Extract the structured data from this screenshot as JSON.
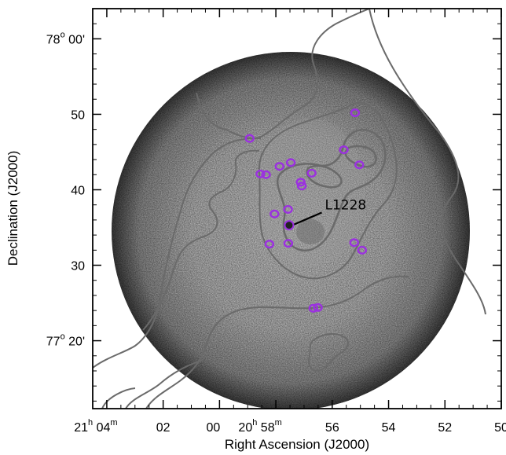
{
  "chart_data": {
    "type": "scatter",
    "title": "",
    "xlabel": "Right Ascension (J2000)",
    "ylabel": "Declination (J2000)",
    "x_unit": "minutes of RA (20h offset)",
    "y_unit": "arcmin above 77°",
    "xlim": [
      64.5,
      50
    ],
    "ylim": [
      11,
      64
    ],
    "grid": false,
    "background": "greyscale sky image (circular field)",
    "x_ticks": [
      {
        "value": 64,
        "h": "21",
        "m": "04",
        "rest": ""
      },
      {
        "value": 62,
        "h": "",
        "m": "",
        "rest": "02"
      },
      {
        "value": 60,
        "h": "",
        "m": "",
        "rest": "00"
      },
      {
        "value": 58,
        "h": "20",
        "m": "58",
        "rest": ""
      },
      {
        "value": 56,
        "h": "",
        "m": "",
        "rest": "56"
      },
      {
        "value": 54,
        "h": "",
        "m": "",
        "rest": "54"
      },
      {
        "value": 52,
        "h": "",
        "m": "",
        "rest": "52"
      },
      {
        "value": 50,
        "h": "",
        "m": "",
        "rest": "50"
      }
    ],
    "y_ticks": [
      {
        "value": 60,
        "deg": "78",
        "min": "00'",
        "plain": ""
      },
      {
        "value": 50,
        "deg": "",
        "min": "",
        "plain": "50"
      },
      {
        "value": 40,
        "deg": "",
        "min": "",
        "plain": "40"
      },
      {
        "value": 30,
        "deg": "",
        "min": "",
        "plain": "30"
      },
      {
        "value": 20,
        "deg": "77",
        "min": "20'",
        "plain": ""
      }
    ],
    "ellipses": [
      {
        "x": 55.19,
        "y": 50.2
      },
      {
        "x": 58.93,
        "y": 46.8
      },
      {
        "x": 55.59,
        "y": 45.3
      },
      {
        "x": 55.04,
        "y": 43.3
      },
      {
        "x": 58.55,
        "y": 42.1
      },
      {
        "x": 58.35,
        "y": 42.0
      },
      {
        "x": 57.87,
        "y": 43.1
      },
      {
        "x": 57.47,
        "y": 43.6
      },
      {
        "x": 56.73,
        "y": 42.2
      },
      {
        "x": 57.12,
        "y": 41.0
      },
      {
        "x": 57.08,
        "y": 40.5
      },
      {
        "x": 58.05,
        "y": 36.8
      },
      {
        "x": 57.57,
        "y": 37.4
      },
      {
        "x": 58.23,
        "y": 32.8
      },
      {
        "x": 57.56,
        "y": 32.9
      },
      {
        "x": 55.22,
        "y": 33.0
      },
      {
        "x": 54.94,
        "y": 32.0
      },
      {
        "x": 56.67,
        "y": 24.3
      },
      {
        "x": 56.51,
        "y": 24.4
      }
    ],
    "source_marker": {
      "x": 57.53,
      "y": 35.3
    },
    "annotation": {
      "text": "L1228",
      "x": 56.26,
      "y": 37.5
    },
    "colors": {
      "ellipse": "#9b30e0",
      "contour": "#6a6a6a",
      "marker": "#000000"
    }
  }
}
